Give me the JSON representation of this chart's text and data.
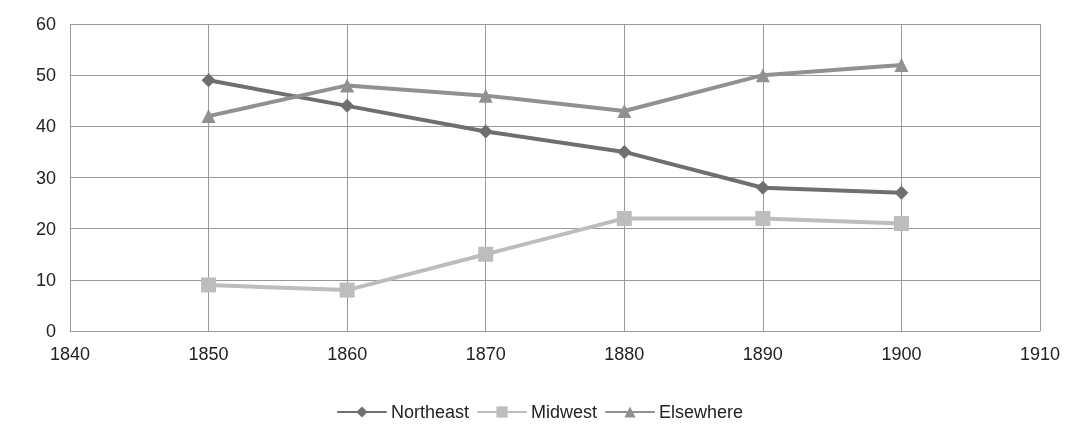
{
  "chart_data": {
    "type": "line",
    "x": [
      1850,
      1860,
      1870,
      1880,
      1890,
      1900
    ],
    "series": [
      {
        "name": "Northeast",
        "color": "#6f6f6f",
        "marker": "diamond",
        "values": [
          49,
          44,
          39,
          35,
          28,
          27
        ]
      },
      {
        "name": "Midwest",
        "color": "#bdbdbd",
        "marker": "square",
        "values": [
          9,
          8,
          15,
          22,
          22,
          21
        ]
      },
      {
        "name": "Elsewhere",
        "color": "#919191",
        "marker": "triangle",
        "values": [
          42,
          48,
          46,
          43,
          50,
          52
        ]
      }
    ],
    "xlim": [
      1840,
      1910
    ],
    "xticks": [
      1840,
      1850,
      1860,
      1870,
      1880,
      1890,
      1900,
      1910
    ],
    "ylim": [
      0,
      60
    ],
    "yticks": [
      0,
      10,
      20,
      30,
      40,
      50,
      60
    ],
    "grid": true,
    "legend": "bottom",
    "line_style": "solid"
  }
}
